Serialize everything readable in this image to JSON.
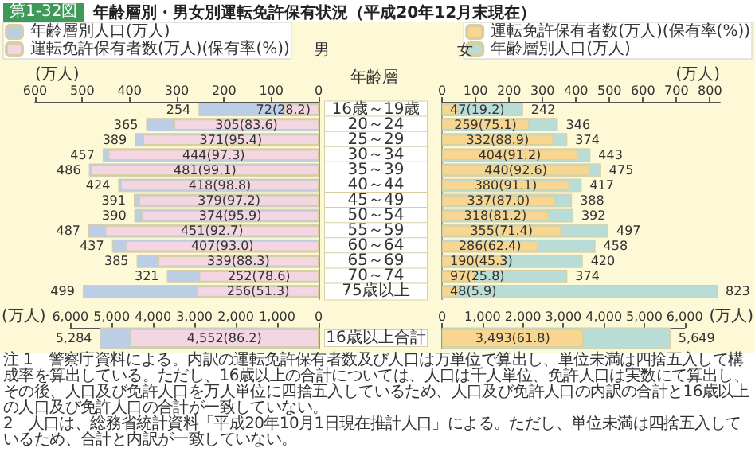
{
  "chart_data": [
    {
      "type": "bar",
      "orientation": "horizontal",
      "title": "年齢層別・男女別運転免許保有状況（平成20年12月末現在）",
      "subtitle": "第1-32図",
      "xlabel": "(万人)",
      "ylabel": "年齢層",
      "legend": "top left",
      "legend_title": "男",
      "categories": [
        "16歳～19歳",
        "20～24",
        "25～29",
        "30～34",
        "35～39",
        "40～44",
        "45～49",
        "50～54",
        "55～59",
        "60～64",
        "65～69",
        "70～74",
        "75歳以上"
      ],
      "xlim": [
        600,
        0
      ],
      "xticks": [
        600,
        500,
        400,
        300,
        200,
        100,
        0
      ],
      "series": [
        {
          "name": "年齢層別人口(万人)",
          "color": "#bccde6",
          "values": [
            254,
            365,
            389,
            457,
            486,
            424,
            391,
            390,
            487,
            437,
            385,
            321,
            499
          ],
          "value_labels": [
            "254",
            "365",
            "389",
            "457",
            "486",
            "424",
            "391",
            "390",
            "487",
            "437",
            "385",
            "321",
            "499"
          ]
        },
        {
          "name": "運転免許保有者数(万人)(保有率(%))",
          "color": "#f3d6e2",
          "values": [
            72,
            305,
            371,
            444,
            481,
            418,
            379,
            374,
            451,
            407,
            339,
            252,
            256
          ],
          "value_labels": [
            "72(28.2)",
            "305(83.6)",
            "371(95.4)",
            "444(97.3)",
            "481(99.1)",
            "418(98.8)",
            "379(97.2)",
            "374(95.9)",
            "451(92.7)",
            "407(93.0)",
            "339(88.3)",
            "252(78.6)",
            "256(51.3)"
          ]
        }
      ]
    },
    {
      "type": "bar",
      "orientation": "horizontal",
      "xlabel": "(万人)",
      "legend": "top right",
      "legend_title": "女",
      "tick_labels": "x",
      "categories": [
        null,
        null,
        null,
        null,
        null,
        null,
        null,
        null,
        null,
        null,
        null,
        null,
        null
      ],
      "xlim": [
        0,
        830
      ],
      "xticks": [
        0,
        100,
        200,
        300,
        400,
        500,
        600,
        700,
        800
      ],
      "series": [
        {
          "name": "年齢層別人口(万人)",
          "color": "#b9dcd6",
          "values": [
            242,
            346,
            374,
            443,
            475,
            417,
            388,
            392,
            497,
            458,
            420,
            374,
            823
          ],
          "value_labels": [
            "242",
            "346",
            "374",
            "443",
            "475",
            "417",
            "388",
            "392",
            "497",
            "458",
            "420",
            "374",
            "823"
          ]
        },
        {
          "name": "運転免許保有者数(万人)(保有率(%))",
          "color": "#f9d68f",
          "values": [
            47,
            259,
            332,
            404,
            440,
            380,
            337,
            318,
            355,
            286,
            190,
            97,
            48
          ],
          "value_labels": [
            "47(19.2)",
            "259(75.1)",
            "332(88.9)",
            "404(91.2)",
            "440(92.6)",
            "380(91.1)",
            "337(87.0)",
            "318(81.2)",
            "355(71.4)",
            "286(62.4)",
            "190(45.3)",
            "97(25.8)",
            "48(5.9)"
          ]
        }
      ]
    },
    {
      "type": "bar",
      "orientation": "horizontal",
      "xlabel": "(万人)",
      "categories": [
        "16歳以上合計"
      ],
      "xlim": [
        6000,
        0
      ],
      "xticks": [
        {
          "value": 6000,
          "label": "6,000"
        },
        {
          "value": 5000,
          "label": "5,000"
        },
        {
          "value": 4000,
          "label": "4,000"
        },
        {
          "value": 3000,
          "label": "3,000"
        },
        {
          "value": 2000,
          "label": "2,000"
        },
        {
          "value": 1000,
          "label": "1,000"
        },
        0
      ],
      "series": [
        {
          "color": "#bccde6",
          "values": [
            5284
          ],
          "value_labels": [
            "5,284"
          ]
        },
        {
          "color": "#f3d6e2",
          "values": [
            4552
          ],
          "value_labels": [
            "4,552(86.2)"
          ]
        }
      ]
    },
    {
      "type": "bar",
      "orientation": "horizontal",
      "xlabel": "(万人)",
      "tick_labels": "x",
      "categories": [
        null
      ],
      "xlim": [
        0,
        6000
      ],
      "xticks": [
        0,
        {
          "value": 1000,
          "label": "1,000"
        },
        {
          "value": 2000,
          "label": "2,000"
        },
        {
          "value": 3000,
          "label": "3,000"
        },
        {
          "value": 4000,
          "label": "4,000"
        },
        {
          "value": 5000,
          "label": "5,000"
        },
        {
          "value": 6000,
          "label": "6,000"
        }
      ],
      "annotations": [
        "注 1　警察庁資料による。内訳の運転免許保有者数及び人口は万単位で算出し、単位未満は四捨五入して構成率を算出している。ただし、16歳以上の合計については、人口は千人単位、免許人口は実数にて算出し、その後、人口及び免許人口を万人単位に四捨五入しているため、人口及び免許人口の内訳の合計と16歳以上の人口及び免許人口の合計が一致していない。",
        "2　人口は、総務省統計資料「平成20年10月1日現在推計人口」による。ただし、単位未満は四捨五入しているため、合計と内訳が一致していない。"
      ],
      "series": [
        {
          "color": "#b9dcd6",
          "values": [
            5649
          ],
          "value_labels": [
            "5,649"
          ]
        },
        {
          "color": "#f9d68f",
          "values": [
            3493
          ],
          "value_labels": [
            "3,493(61.8)"
          ]
        }
      ]
    }
  ]
}
